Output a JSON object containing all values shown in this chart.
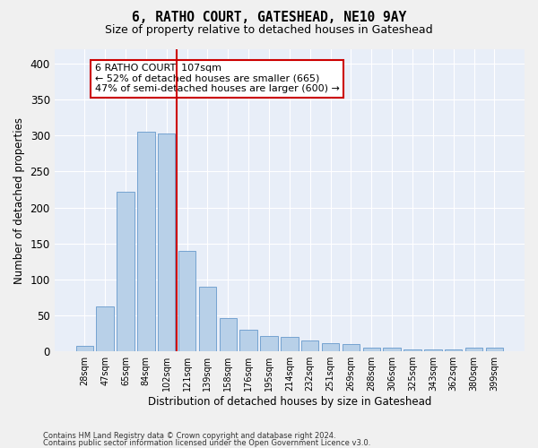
{
  "title": "6, RATHO COURT, GATESHEAD, NE10 9AY",
  "subtitle": "Size of property relative to detached houses in Gateshead",
  "xlabel": "Distribution of detached houses by size in Gateshead",
  "ylabel": "Number of detached properties",
  "bar_color": "#b8d0e8",
  "bar_edge_color": "#6699cc",
  "background_color": "#e8eef8",
  "grid_color": "#ffffff",
  "categories": [
    "28sqm",
    "47sqm",
    "65sqm",
    "84sqm",
    "102sqm",
    "121sqm",
    "139sqm",
    "158sqm",
    "176sqm",
    "195sqm",
    "214sqm",
    "232sqm",
    "251sqm",
    "269sqm",
    "288sqm",
    "306sqm",
    "325sqm",
    "343sqm",
    "362sqm",
    "380sqm",
    "399sqm"
  ],
  "values": [
    8,
    63,
    222,
    305,
    303,
    140,
    90,
    46,
    30,
    22,
    20,
    15,
    12,
    10,
    5,
    5,
    3,
    3,
    3,
    5,
    5
  ],
  "ylim": [
    0,
    420
  ],
  "yticks": [
    0,
    50,
    100,
    150,
    200,
    250,
    300,
    350,
    400
  ],
  "property_bin_index": 4,
  "annotation_text": "6 RATHO COURT: 107sqm\n← 52% of detached houses are smaller (665)\n47% of semi-detached houses are larger (600) →",
  "annotation_box_color": "#ffffff",
  "annotation_box_edge_color": "#cc0000",
  "vline_color": "#cc0000",
  "footer_line1": "Contains HM Land Registry data © Crown copyright and database right 2024.",
  "footer_line2": "Contains public sector information licensed under the Open Government Licence v3.0."
}
